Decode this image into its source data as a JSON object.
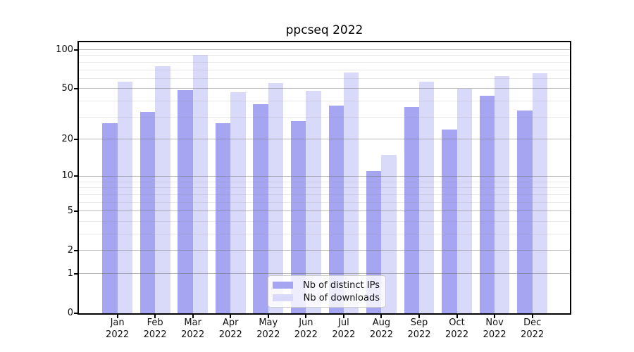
{
  "title": "ppcseq 2022",
  "chart_data": {
    "type": "bar",
    "title": "ppcseq 2022",
    "categories": [
      {
        "month": "Jan",
        "year": "2022"
      },
      {
        "month": "Feb",
        "year": "2022"
      },
      {
        "month": "Mar",
        "year": "2022"
      },
      {
        "month": "Apr",
        "year": "2022"
      },
      {
        "month": "May",
        "year": "2022"
      },
      {
        "month": "Jun",
        "year": "2022"
      },
      {
        "month": "Jul",
        "year": "2022"
      },
      {
        "month": "Aug",
        "year": "2022"
      },
      {
        "month": "Sep",
        "year": "2022"
      },
      {
        "month": "Oct",
        "year": "2022"
      },
      {
        "month": "Nov",
        "year": "2022"
      },
      {
        "month": "Dec",
        "year": "2022"
      }
    ],
    "series": [
      {
        "name": "Nb of distinct IPs",
        "key": "distinct-ips",
        "color": "#a5a5f2",
        "values": [
          27,
          33,
          49,
          27,
          38,
          28,
          37,
          11,
          36,
          24,
          44,
          34
        ]
      },
      {
        "name": "Nb of downloads",
        "key": "downloads",
        "color": "#d9d9fa",
        "values": [
          57,
          75,
          91,
          47,
          55,
          48,
          67,
          15,
          57,
          50,
          63,
          66
        ]
      }
    ],
    "yscale": "log1p",
    "ylim": [
      0,
      114
    ],
    "yticks": [
      0,
      1,
      2,
      5,
      10,
      20,
      50,
      100
    ],
    "yticks_minor": [
      3,
      4,
      6,
      7,
      8,
      9,
      30,
      40,
      60,
      70,
      80,
      90
    ],
    "grid": "both",
    "legend_position": "lower center"
  },
  "colors": {
    "background": "#ffffff",
    "spine": "#000000",
    "text": "#111111",
    "grid_major": "#bcbcbc",
    "grid_minor": "#e6e6e6",
    "legend_border": "#cccccc"
  }
}
